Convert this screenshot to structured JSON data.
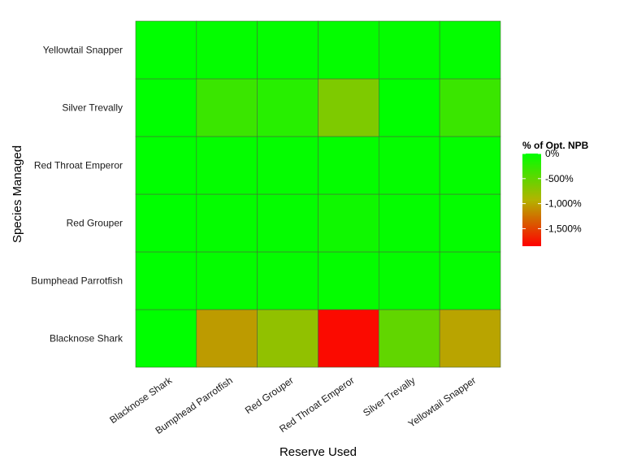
{
  "chart_data": {
    "type": "heatmap",
    "xlabel": "Reserve Used",
    "ylabel": "Species Managed",
    "x_categories": [
      "Blacknose Shark",
      "Bumphead Parrotfish",
      "Red Grouper",
      "Red Throat Emperor",
      "Silver Trevally",
      "Yellowtail Snapper"
    ],
    "y_categories": [
      "Blacknose Shark",
      "Bumphead Parrotfish",
      "Red Grouper",
      "Red Throat Emperor",
      "Silver Trevally",
      "Yellowtail Snapper"
    ],
    "values": [
      [
        0,
        -1050,
        -750,
        -1800,
        -500,
        -1000
      ],
      [
        0,
        -20,
        -20,
        -20,
        -20,
        -20
      ],
      [
        0,
        -20,
        -20,
        -80,
        -20,
        -20
      ],
      [
        0,
        -20,
        -20,
        -20,
        -20,
        -20
      ],
      [
        0,
        -300,
        -200,
        -650,
        0,
        -300
      ],
      [
        0,
        -20,
        -20,
        -20,
        -20,
        -20
      ]
    ],
    "legend": {
      "title": "% of Opt. NPB",
      "position": "right",
      "range": [
        -1850,
        0
      ],
      "breaks": [
        0,
        -500,
        -1000,
        -1500
      ],
      "break_labels": [
        "0%",
        "-500%",
        "-1,000%",
        "-1,500%"
      ],
      "colors": {
        "high": "#00ff00",
        "mid": "#b3b300",
        "low": "#ff0000"
      }
    },
    "grid": false,
    "cell_border_color": "#4a6a3a"
  }
}
